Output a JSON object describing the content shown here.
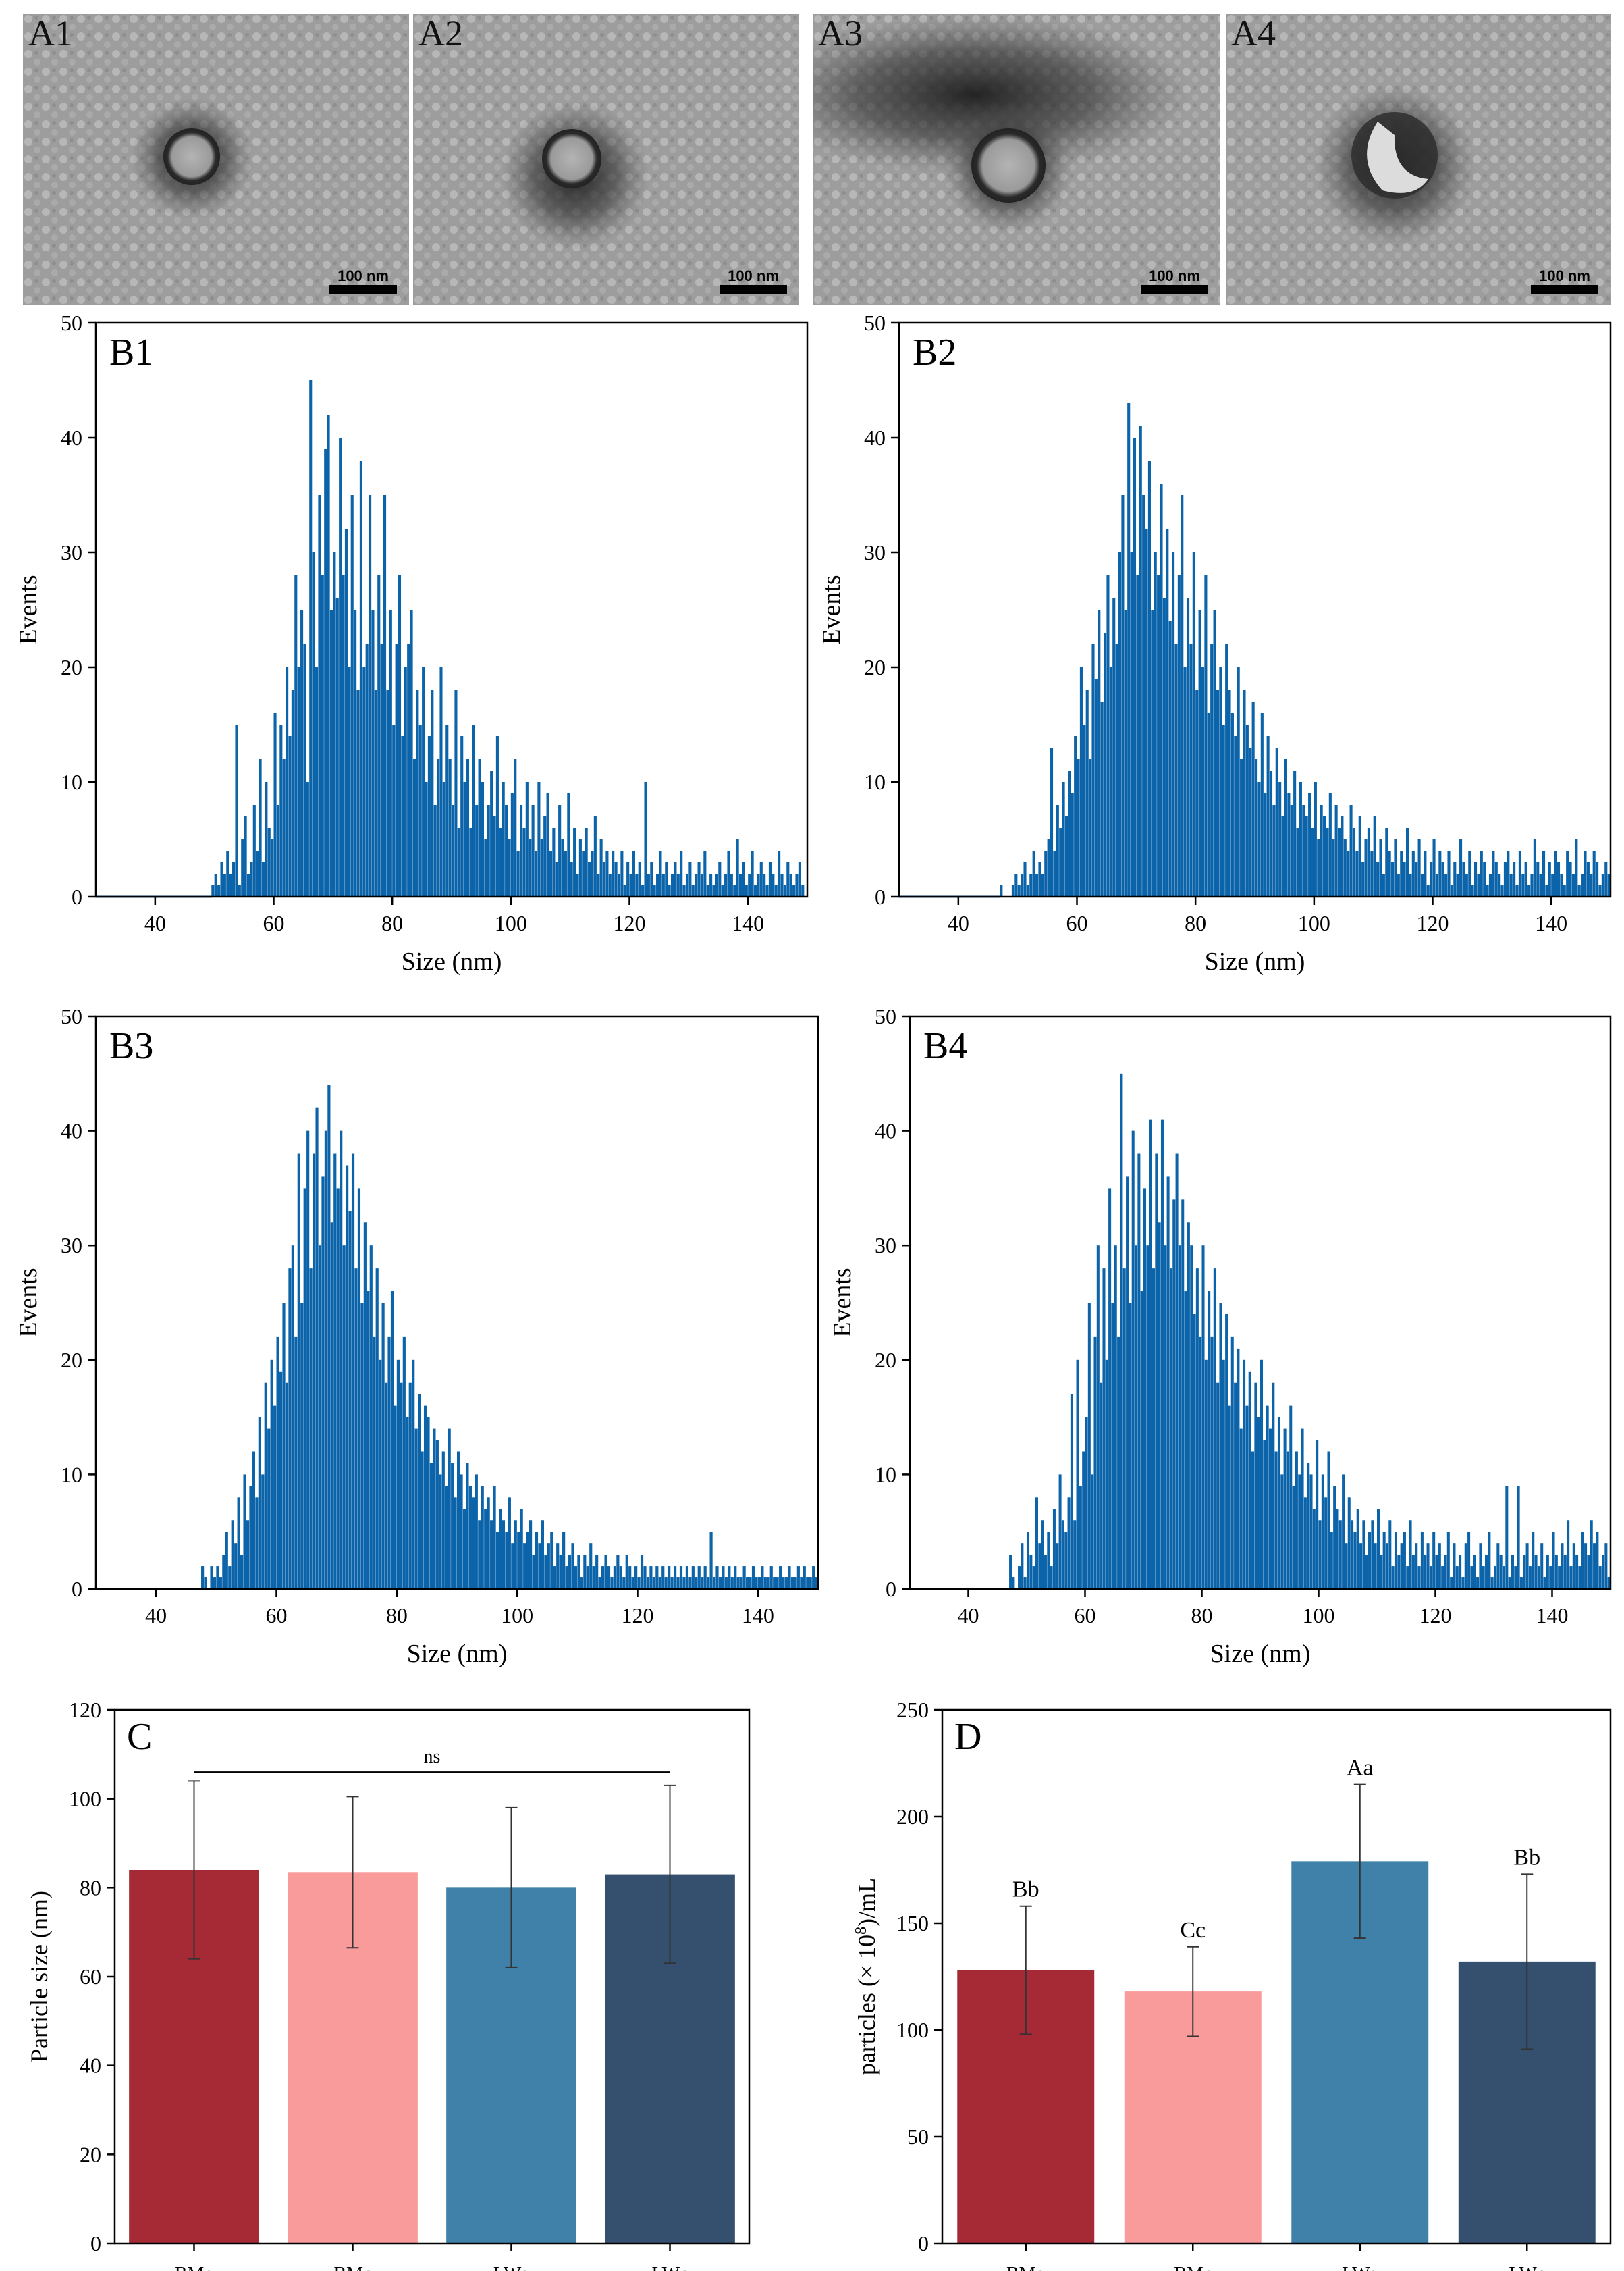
{
  "tem_panels": [
    {
      "label": "A1",
      "scale": "100 nm",
      "shape": "round"
    },
    {
      "label": "A2",
      "scale": "100 nm",
      "shape": "round"
    },
    {
      "label": "A3",
      "scale": "100 nm",
      "shape": "round"
    },
    {
      "label": "A4",
      "scale": "100 nm",
      "shape": "cup"
    }
  ],
  "chart_data": [
    {
      "id": "B1",
      "type": "bar",
      "label": "B1",
      "xlabel": "Size (nm)",
      "ylabel": "Events",
      "xlim": [
        30,
        150
      ],
      "ylim": [
        0,
        50
      ],
      "xticks": [
        40,
        60,
        80,
        100,
        120,
        140
      ],
      "yticks": [
        0,
        10,
        20,
        30,
        40,
        50
      ],
      "color": "#0b63a9",
      "bin_width": 0.5,
      "x_start": 49.5,
      "values": [
        1,
        2,
        1,
        3,
        2,
        4,
        2,
        3,
        15,
        1,
        5,
        7,
        2,
        3,
        8,
        4,
        12,
        3,
        10,
        6,
        5,
        16,
        8,
        15,
        12,
        20,
        14,
        18,
        28,
        20,
        25,
        22,
        10,
        45,
        30,
        20,
        35,
        28,
        39,
        42,
        25,
        30,
        26,
        40,
        28,
        32,
        20,
        35,
        25,
        18,
        38,
        20,
        22,
        35,
        25,
        18,
        28,
        22,
        35,
        18,
        25,
        15,
        22,
        28,
        14,
        20,
        22,
        25,
        12,
        18,
        15,
        20,
        10,
        14,
        18,
        8,
        12,
        20,
        10,
        15,
        12,
        8,
        18,
        6,
        14,
        10,
        12,
        6,
        15,
        8,
        12,
        10,
        5,
        8,
        11,
        7,
        14,
        6,
        10,
        8,
        5,
        9,
        12,
        4,
        8,
        6,
        10,
        5,
        8,
        4,
        10,
        5,
        7,
        9,
        4,
        6,
        3,
        8,
        5,
        4,
        9,
        3,
        6,
        2,
        5,
        4,
        6,
        3,
        4,
        7,
        2,
        5,
        3,
        4,
        2,
        4,
        3,
        2,
        4,
        1,
        3,
        2,
        4,
        2,
        3,
        1,
        10,
        2,
        3,
        1,
        2,
        4,
        2,
        3,
        1,
        2,
        3,
        2,
        4,
        1,
        2,
        3,
        1,
        2,
        3,
        2,
        4,
        1,
        2,
        1,
        2,
        3,
        1,
        2,
        4,
        2,
        1,
        5,
        2,
        3,
        1,
        2,
        4,
        1,
        2,
        3,
        2,
        1,
        3,
        2,
        1,
        4,
        2,
        1,
        3,
        2,
        1,
        2,
        3,
        1
      ]
    },
    {
      "id": "B2",
      "type": "bar",
      "label": "B2",
      "xlabel": "Size (nm)",
      "ylabel": "Events",
      "xlim": [
        30,
        150
      ],
      "ylim": [
        0,
        50
      ],
      "xticks": [
        40,
        60,
        80,
        100,
        120,
        140
      ],
      "yticks": [
        0,
        10,
        20,
        30,
        40,
        50
      ],
      "color": "#0b63a9",
      "bin_width": 0.5,
      "x_start": 47,
      "values": [
        1,
        0,
        0,
        0,
        1,
        2,
        1,
        2,
        3,
        1,
        2,
        4,
        2,
        3,
        2,
        4,
        5,
        13,
        4,
        8,
        6,
        10,
        7,
        11,
        9,
        14,
        12,
        20,
        15,
        18,
        12,
        22,
        19,
        25,
        17,
        23,
        28,
        20,
        26,
        22,
        30,
        35,
        25,
        43,
        30,
        40,
        28,
        41,
        35,
        32,
        38,
        25,
        30,
        28,
        36,
        26,
        32,
        24,
        30,
        22,
        28,
        35,
        20,
        26,
        22,
        30,
        18,
        25,
        20,
        28,
        16,
        22,
        25,
        18,
        20,
        15,
        22,
        18,
        16,
        14,
        20,
        12,
        18,
        15,
        13,
        17,
        12,
        10,
        16,
        9,
        14,
        11,
        8,
        13,
        10,
        7,
        12,
        9,
        8,
        11,
        6,
        10,
        8,
        7,
        9,
        6,
        10,
        5,
        8,
        7,
        6,
        9,
        5,
        8,
        6,
        7,
        5,
        4,
        8,
        6,
        4,
        7,
        3,
        5,
        6,
        4,
        7,
        3,
        5,
        2,
        6,
        4,
        3,
        5,
        2,
        4,
        3,
        6,
        2,
        4,
        3,
        5,
        2,
        4,
        1,
        3,
        5,
        2,
        4,
        3,
        2,
        4,
        1,
        3,
        2,
        5,
        3,
        2,
        4,
        1,
        3,
        2,
        4,
        3,
        1,
        2,
        4,
        3,
        2,
        1,
        3,
        4,
        2,
        3,
        1,
        4,
        2,
        3,
        1,
        2,
        5,
        3,
        2,
        4,
        1,
        3,
        2,
        4,
        3,
        2,
        1,
        4,
        3,
        2,
        5,
        1,
        2,
        4,
        3,
        2,
        4,
        3,
        1,
        2,
        3,
        2,
        4,
        1,
        3,
        2,
        4,
        3,
        2,
        1,
        3,
        2,
        4,
        2
      ]
    },
    {
      "id": "B3",
      "type": "bar",
      "label": "B3",
      "xlabel": "Size (nm)",
      "ylabel": "Events",
      "xlim": [
        30,
        150
      ],
      "ylim": [
        0,
        50
      ],
      "xticks": [
        40,
        60,
        80,
        100,
        120,
        140
      ],
      "yticks": [
        0,
        10,
        20,
        30,
        40,
        50
      ],
      "color": "#0b63a9",
      "bin_width": 0.5,
      "x_start": 47.5,
      "values": [
        2,
        1,
        0,
        2,
        1,
        2,
        1,
        3,
        5,
        2,
        6,
        4,
        8,
        3,
        10,
        6,
        9,
        12,
        8,
        15,
        10,
        18,
        14,
        20,
        16,
        22,
        19,
        25,
        18,
        28,
        30,
        22,
        38,
        25,
        35,
        40,
        28,
        38,
        42,
        30,
        36,
        40,
        44,
        32,
        38,
        35,
        40,
        30,
        37,
        33,
        38,
        28,
        35,
        25,
        32,
        26,
        30,
        22,
        28,
        20,
        25,
        18,
        22,
        26,
        16,
        20,
        18,
        22,
        15,
        18,
        20,
        14,
        17,
        12,
        16,
        15,
        11,
        14,
        13,
        10,
        12,
        9,
        14,
        11,
        8,
        12,
        10,
        7,
        11,
        9,
        8,
        10,
        6,
        9,
        7,
        8,
        6,
        9,
        5,
        7,
        6,
        5,
        8,
        4,
        6,
        5,
        7,
        4,
        5,
        6,
        3,
        5,
        4,
        6,
        3,
        4,
        5,
        2,
        4,
        3,
        5,
        2,
        3,
        4,
        2,
        3,
        1,
        3,
        2,
        4,
        2,
        3,
        1,
        2,
        3,
        2,
        1,
        2,
        3,
        2,
        1,
        3,
        2,
        1,
        2,
        1,
        3,
        2,
        1,
        2,
        1,
        2,
        1,
        2,
        1,
        2,
        1,
        2,
        1,
        2,
        1,
        2,
        1,
        2,
        1,
        2,
        1,
        2,
        1,
        5,
        1,
        2,
        1,
        2,
        1,
        2,
        1,
        2,
        1,
        1,
        2,
        1,
        1,
        2,
        1,
        1,
        2,
        1,
        1,
        2,
        1,
        1,
        2,
        1,
        1,
        2,
        1,
        1,
        2,
        1,
        2,
        1,
        1,
        2,
        1,
        1,
        1,
        2,
        1,
        1,
        1,
        1,
        1,
        1,
        1,
        1,
        1
      ]
    },
    {
      "id": "B4",
      "type": "bar",
      "label": "B4",
      "xlabel": "Size (nm)",
      "ylabel": "Events",
      "xlim": [
        30,
        150
      ],
      "ylim": [
        0,
        50
      ],
      "xticks": [
        40,
        60,
        80,
        100,
        120,
        140
      ],
      "yticks": [
        0,
        10,
        20,
        30,
        40,
        50
      ],
      "color": "#0b63a9",
      "bin_width": 0.5,
      "x_start": 47,
      "values": [
        3,
        1,
        0,
        2,
        4,
        1,
        5,
        3,
        2,
        8,
        4,
        6,
        3,
        5,
        2,
        7,
        4,
        10,
        6,
        5,
        8,
        17,
        6,
        20,
        9,
        12,
        15,
        25,
        10,
        22,
        30,
        18,
        28,
        20,
        35,
        25,
        30,
        22,
        45,
        28,
        36,
        25,
        40,
        30,
        38,
        26,
        35,
        30,
        41,
        28,
        38,
        32,
        41,
        30,
        36,
        28,
        34,
        38,
        30,
        34,
        26,
        32,
        30,
        24,
        28,
        22,
        30,
        20,
        26,
        22,
        28,
        18,
        25,
        20,
        24,
        16,
        22,
        18,
        21,
        14,
        20,
        16,
        19,
        12,
        18,
        15,
        20,
        13,
        16,
        14,
        18,
        12,
        15,
        10,
        14,
        12,
        16,
        9,
        12,
        10,
        14,
        8,
        11,
        10,
        7,
        13,
        6,
        10,
        8,
        12,
        5,
        9,
        7,
        6,
        10,
        4,
        8,
        6,
        5,
        7,
        4,
        6,
        3,
        5,
        6,
        4,
        7,
        3,
        5,
        4,
        6,
        2,
        5,
        3,
        4,
        5,
        2,
        6,
        3,
        4,
        2,
        5,
        3,
        4,
        2,
        5,
        3,
        4,
        2,
        3,
        5,
        1,
        4,
        2,
        3,
        1,
        4,
        5,
        2,
        3,
        1,
        4,
        2,
        3,
        5,
        1,
        2,
        4,
        3,
        2,
        9,
        1,
        3,
        2,
        9,
        1,
        3,
        4,
        2,
        5,
        3,
        2,
        4,
        1,
        3,
        2,
        5,
        3,
        2,
        4,
        3,
        6,
        2,
        4,
        3,
        2,
        5,
        4,
        3,
        6,
        4,
        5,
        2,
        3,
        4,
        1,
        3,
        2,
        4,
        1,
        3
      ]
    },
    {
      "id": "C",
      "type": "bar",
      "label": "C",
      "categories": [
        "BMo",
        "BMc",
        "LWo",
        "LWc"
      ],
      "values": [
        84.0,
        83.5,
        80.0,
        83.0
      ],
      "errors": [
        20.0,
        17.0,
        18.0,
        20.0
      ],
      "colors": [
        "#a52a36",
        "#f99a9b",
        "#3f81a9",
        "#34506e"
      ],
      "ylabel": "Particle size (nm)",
      "ylim": [
        0,
        120
      ],
      "yticks": [
        0,
        20,
        40,
        60,
        80,
        100,
        120
      ],
      "annotation": "ns"
    },
    {
      "id": "D",
      "type": "bar",
      "label": "D",
      "categories": [
        "BMo",
        "BMc",
        "LWo",
        "LWc"
      ],
      "values": [
        128,
        118,
        179,
        132
      ],
      "errors": [
        30,
        21,
        36,
        41
      ],
      "colors": [
        "#a52a36",
        "#f99a9b",
        "#3f81a9",
        "#34506e"
      ],
      "bar_labels": [
        "Bb",
        "Cc",
        "Aa",
        "Bb"
      ],
      "ylabel_prefix": "particles (× 10",
      "ylabel_sup": "8",
      "ylabel_suffix": ")/mL",
      "ylim": [
        0,
        250
      ],
      "yticks": [
        0,
        50,
        100,
        150,
        200,
        250
      ]
    }
  ]
}
